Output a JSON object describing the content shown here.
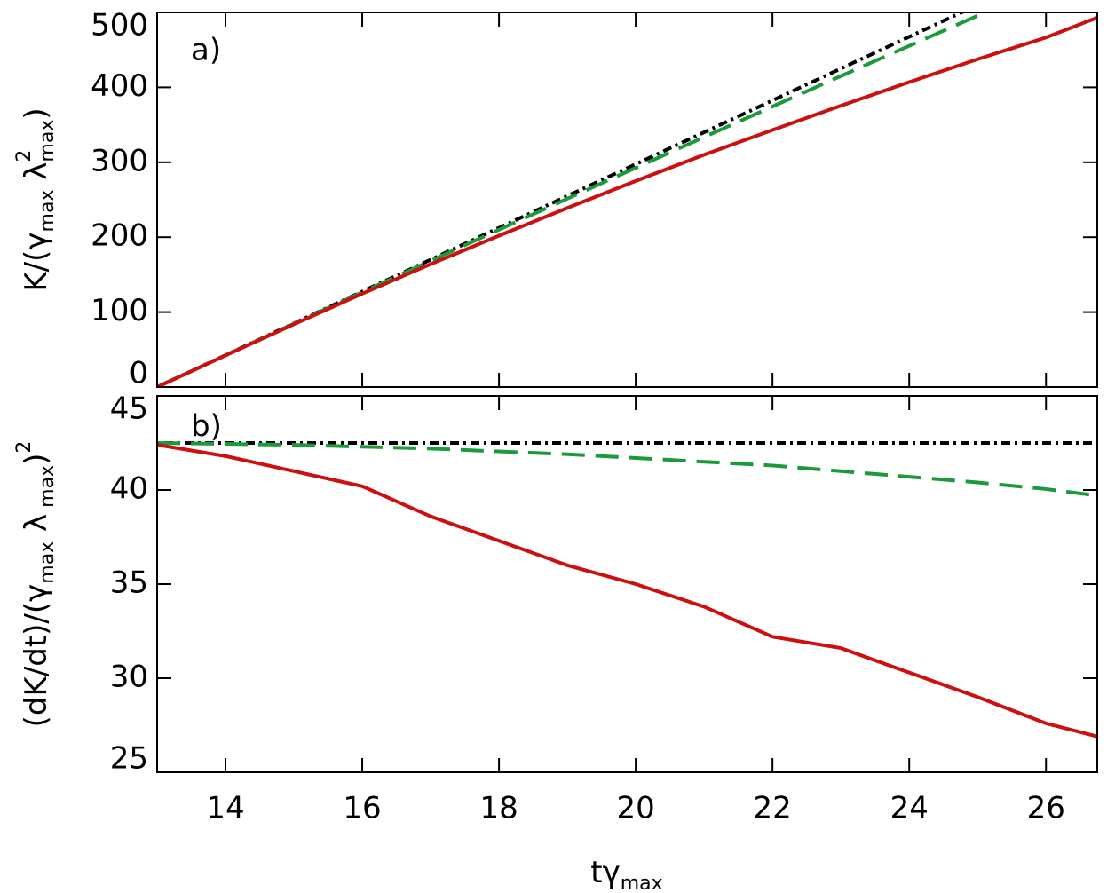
{
  "chart_data": [
    {
      "type": "line",
      "annotation": "a)",
      "ylabel": [
        "K/(γ",
        "max",
        " λ",
        "2",
        "max",
        ")"
      ],
      "x": [
        13,
        14,
        15,
        16,
        17,
        18,
        19,
        20,
        21,
        22,
        23,
        24,
        25,
        26,
        26.75
      ],
      "series": [
        {
          "color": "#000000",
          "style": "dashdot",
          "values": [
            0,
            42.5,
            85,
            127.5,
            170,
            212.5,
            255,
            297.5,
            340,
            382.5,
            425,
            467.5,
            510,
            null,
            null
          ]
        },
        {
          "color": "#1a9a3a",
          "style": "dashed",
          "values": [
            0,
            42.4,
            84.6,
            126.6,
            168.4,
            210,
            251.4,
            292.6,
            333.6,
            374.4,
            415,
            455.4,
            495.6,
            null,
            null
          ]
        },
        {
          "color": "#cc1010",
          "style": "solid",
          "values": [
            0,
            42.1,
            83.7,
            124.6,
            164,
            202,
            239,
            275,
            310,
            343,
            375.5,
            407,
            437.5,
            466.5,
            493
          ]
        }
      ],
      "xlim": [
        13,
        26.75
      ],
      "xticks": [
        14,
        16,
        18,
        20,
        22,
        24,
        26
      ],
      "ylim": [
        0,
        500
      ],
      "yticks": [
        0,
        100,
        200,
        300,
        400,
        500
      ]
    },
    {
      "type": "line",
      "annotation": "b)",
      "ylabel": [
        "(dK/dt)/(γ",
        "max",
        " λ",
        " max",
        ")",
        "2"
      ],
      "xlabel": [
        "tγ",
        "max"
      ],
      "x": [
        13,
        14,
        15,
        16,
        17,
        18,
        19,
        20,
        21,
        22,
        23,
        24,
        25,
        26,
        26.75
      ],
      "series": [
        {
          "color": "#000000",
          "style": "dashdot",
          "values": [
            42.5,
            42.5,
            42.5,
            42.5,
            42.5,
            42.5,
            42.5,
            42.5,
            42.5,
            42.5,
            42.5,
            42.5,
            42.5,
            42.5,
            42.5
          ]
        },
        {
          "color": "#1a9a3a",
          "style": "dashed",
          "values": [
            42.5,
            42.45,
            42.4,
            42.3,
            42.2,
            42.05,
            41.9,
            41.7,
            41.5,
            41.3,
            41.0,
            40.7,
            40.4,
            40.05,
            39.7
          ]
        },
        {
          "color": "#cc1010",
          "style": "solid",
          "values": [
            42.4,
            41.8,
            41.0,
            40.2,
            38.6,
            37.3,
            36.0,
            35.0,
            33.8,
            32.2,
            31.6,
            30.3,
            29.0,
            27.6,
            26.9
          ]
        }
      ],
      "xlim": [
        13,
        26.75
      ],
      "xticks": [
        14,
        16,
        18,
        20,
        22,
        24,
        26
      ],
      "ylim": [
        25,
        45
      ],
      "yticks": [
        25,
        30,
        35,
        40,
        45
      ]
    }
  ]
}
